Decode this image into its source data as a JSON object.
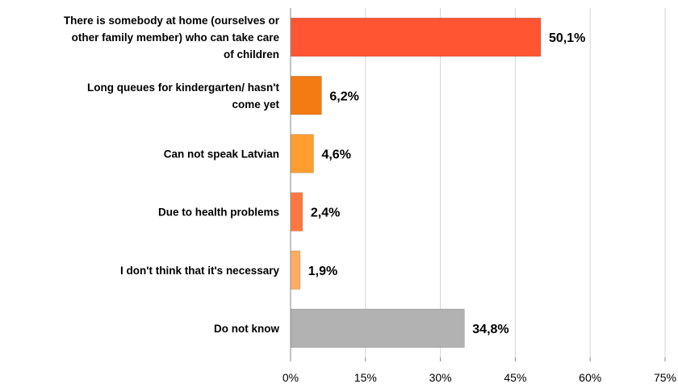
{
  "chart_data": {
    "type": "bar",
    "orientation": "horizontal",
    "categories": [
      "There is somebody at home (ourselves or other family member) who can take care of children",
      "Long queues for kindergarten/ hasn't come yet",
      "Can not speak Latvian",
      "Due to health problems",
      "I don't think that it's necessary",
      "Do not know"
    ],
    "values": [
      50.1,
      6.2,
      4.6,
      2.4,
      1.9,
      34.8
    ],
    "value_labels": [
      "50,1%",
      "6,2%",
      "4,6%",
      "2,4%",
      "1,9%",
      "34,8%"
    ],
    "bar_colors": [
      "#FF5532",
      "#F47A14",
      "#FF9E2F",
      "#FF7740",
      "#FFAC60",
      "#B2B2B2"
    ],
    "xlim": [
      0,
      75
    ],
    "xticks": [
      0,
      15,
      30,
      45,
      60,
      75
    ],
    "xtick_labels": [
      "0%",
      "15%",
      "30%",
      "45%",
      "60%",
      "75%"
    ],
    "grid": "vertical",
    "title": "",
    "xlabel": "",
    "ylabel": ""
  }
}
